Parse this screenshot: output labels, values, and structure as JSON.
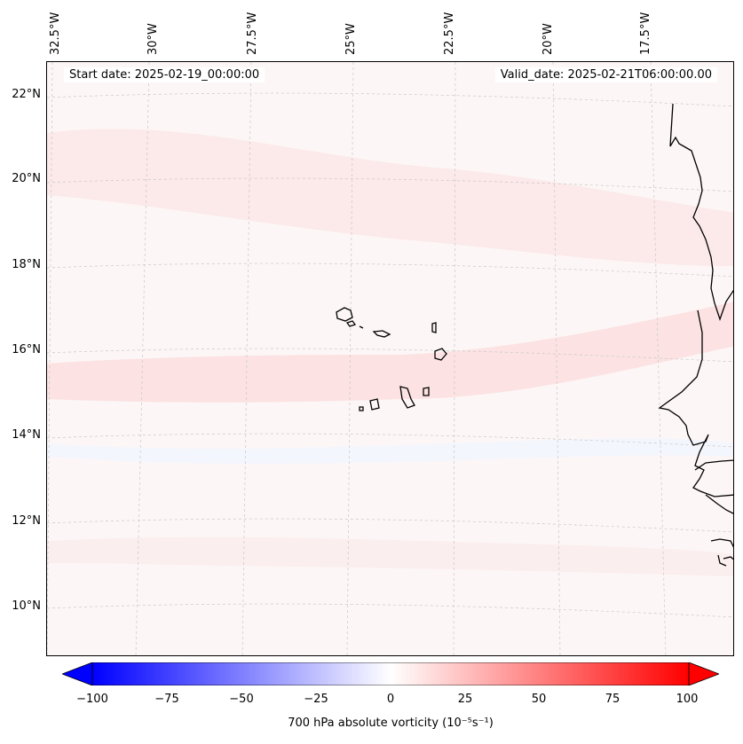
{
  "header": {
    "start_date": "Start date: 2025-02-19_00:00:00",
    "valid_date": "Valid_date: 2025-02-21T06:00:00.00"
  },
  "map": {
    "lon_labels": [
      "32.5°W",
      "30°W",
      "27.5°W",
      "25°W",
      "22.5°W",
      "20°W",
      "17.5°W"
    ],
    "lat_labels": [
      "22°N",
      "20°N",
      "18°N",
      "16°N",
      "14°N",
      "12°N",
      "10°N"
    ],
    "colors": {
      "coastline": "#000000",
      "gridline": "#c8c8c8",
      "background": "#fdf6f6",
      "band": "#fde3e3",
      "weak_negative": "#f3f5fd"
    }
  },
  "colorbar": {
    "ticks": [
      "−100",
      "−75",
      "−50",
      "−25",
      "0",
      "25",
      "50",
      "75",
      "100"
    ],
    "label": "700 hPa absolute vorticity (10⁻⁵s⁻¹)",
    "range": [
      -100,
      100
    ],
    "colormap": "bwr"
  }
}
